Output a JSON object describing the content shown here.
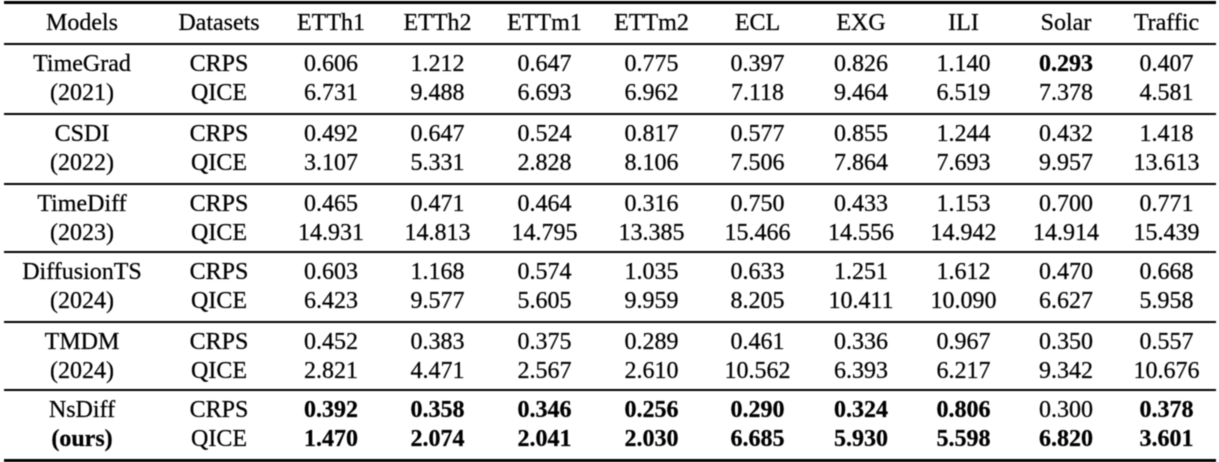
{
  "table": {
    "header": {
      "labels": [
        "Models",
        "Datasets",
        "ETTh1",
        "ETTh2",
        "ETTm1",
        "ETTm2",
        "ECL",
        "EXG",
        "ILI",
        "Solar",
        "Traffic"
      ]
    },
    "groups": [
      {
        "model": "TimeGrad",
        "year": "(2021)",
        "model_bold": false,
        "year_bold": false,
        "rows": [
          {
            "metric": "CRPS",
            "cells": [
              {
                "v": "0.606",
                "b": false
              },
              {
                "v": "1.212",
                "b": false
              },
              {
                "v": "0.647",
                "b": false
              },
              {
                "v": "0.775",
                "b": false
              },
              {
                "v": "0.397",
                "b": false
              },
              {
                "v": "0.826",
                "b": false
              },
              {
                "v": "1.140",
                "b": false
              },
              {
                "v": "0.293",
                "b": true
              },
              {
                "v": "0.407",
                "b": false
              }
            ]
          },
          {
            "metric": "QICE",
            "cells": [
              {
                "v": "6.731",
                "b": false
              },
              {
                "v": "9.488",
                "b": false
              },
              {
                "v": "6.693",
                "b": false
              },
              {
                "v": "6.962",
                "b": false
              },
              {
                "v": "7.118",
                "b": false
              },
              {
                "v": "9.464",
                "b": false
              },
              {
                "v": "6.519",
                "b": false
              },
              {
                "v": "7.378",
                "b": false
              },
              {
                "v": "4.581",
                "b": false
              }
            ]
          }
        ]
      },
      {
        "model": "CSDI",
        "year": "(2022)",
        "model_bold": false,
        "year_bold": false,
        "rows": [
          {
            "metric": "CRPS",
            "cells": [
              {
                "v": "0.492",
                "b": false
              },
              {
                "v": "0.647",
                "b": false
              },
              {
                "v": "0.524",
                "b": false
              },
              {
                "v": "0.817",
                "b": false
              },
              {
                "v": "0.577",
                "b": false
              },
              {
                "v": "0.855",
                "b": false
              },
              {
                "v": "1.244",
                "b": false
              },
              {
                "v": "0.432",
                "b": false
              },
              {
                "v": "1.418",
                "b": false
              }
            ]
          },
          {
            "metric": "QICE",
            "cells": [
              {
                "v": "3.107",
                "b": false
              },
              {
                "v": "5.331",
                "b": false
              },
              {
                "v": "2.828",
                "b": false
              },
              {
                "v": "8.106",
                "b": false
              },
              {
                "v": "7.506",
                "b": false
              },
              {
                "v": "7.864",
                "b": false
              },
              {
                "v": "7.693",
                "b": false
              },
              {
                "v": "9.957",
                "b": false
              },
              {
                "v": "13.613",
                "b": false
              }
            ]
          }
        ]
      },
      {
        "model": "TimeDiff",
        "year": "(2023)",
        "model_bold": false,
        "year_bold": false,
        "rows": [
          {
            "metric": "CRPS",
            "cells": [
              {
                "v": "0.465",
                "b": false
              },
              {
                "v": "0.471",
                "b": false
              },
              {
                "v": "0.464",
                "b": false
              },
              {
                "v": "0.316",
                "b": false
              },
              {
                "v": "0.750",
                "b": false
              },
              {
                "v": "0.433",
                "b": false
              },
              {
                "v": "1.153",
                "b": false
              },
              {
                "v": "0.700",
                "b": false
              },
              {
                "v": "0.771",
                "b": false
              }
            ]
          },
          {
            "metric": "QICE",
            "cells": [
              {
                "v": "14.931",
                "b": false
              },
              {
                "v": "14.813",
                "b": false
              },
              {
                "v": "14.795",
                "b": false
              },
              {
                "v": "13.385",
                "b": false
              },
              {
                "v": "15.466",
                "b": false
              },
              {
                "v": "14.556",
                "b": false
              },
              {
                "v": "14.942",
                "b": false
              },
              {
                "v": "14.914",
                "b": false
              },
              {
                "v": "15.439",
                "b": false
              }
            ]
          }
        ]
      },
      {
        "model": "DiffusionTS",
        "year": "(2024)",
        "model_bold": false,
        "year_bold": false,
        "rows": [
          {
            "metric": "CRPS",
            "cells": [
              {
                "v": "0.603",
                "b": false
              },
              {
                "v": "1.168",
                "b": false
              },
              {
                "v": "0.574",
                "b": false
              },
              {
                "v": "1.035",
                "b": false
              },
              {
                "v": "0.633",
                "b": false
              },
              {
                "v": "1.251",
                "b": false
              },
              {
                "v": "1.612",
                "b": false
              },
              {
                "v": "0.470",
                "b": false
              },
              {
                "v": "0.668",
                "b": false
              }
            ]
          },
          {
            "metric": "QICE",
            "cells": [
              {
                "v": "6.423",
                "b": false
              },
              {
                "v": "9.577",
                "b": false
              },
              {
                "v": "5.605",
                "b": false
              },
              {
                "v": "9.959",
                "b": false
              },
              {
                "v": "8.205",
                "b": false
              },
              {
                "v": "10.411",
                "b": false
              },
              {
                "v": "10.090",
                "b": false
              },
              {
                "v": "6.627",
                "b": false
              },
              {
                "v": "5.958",
                "b": false
              }
            ]
          }
        ]
      },
      {
        "model": "TMDM",
        "year": "(2024)",
        "model_bold": false,
        "year_bold": false,
        "rows": [
          {
            "metric": "CRPS",
            "cells": [
              {
                "v": "0.452",
                "b": false
              },
              {
                "v": "0.383",
                "b": false
              },
              {
                "v": "0.375",
                "b": false
              },
              {
                "v": "0.289",
                "b": false
              },
              {
                "v": "0.461",
                "b": false
              },
              {
                "v": "0.336",
                "b": false
              },
              {
                "v": "0.967",
                "b": false
              },
              {
                "v": "0.350",
                "b": false
              },
              {
                "v": "0.557",
                "b": false
              }
            ]
          },
          {
            "metric": "QICE",
            "cells": [
              {
                "v": "2.821",
                "b": false
              },
              {
                "v": "4.471",
                "b": false
              },
              {
                "v": "2.567",
                "b": false
              },
              {
                "v": "2.610",
                "b": false
              },
              {
                "v": "10.562",
                "b": false
              },
              {
                "v": "6.393",
                "b": false
              },
              {
                "v": "6.217",
                "b": false
              },
              {
                "v": "9.342",
                "b": false
              },
              {
                "v": "10.676",
                "b": false
              }
            ]
          }
        ]
      },
      {
        "model": "NsDiff",
        "year": "(ours)",
        "model_bold": false,
        "year_bold": true,
        "rows": [
          {
            "metric": "CRPS",
            "cells": [
              {
                "v": "0.392",
                "b": true
              },
              {
                "v": "0.358",
                "b": true
              },
              {
                "v": "0.346",
                "b": true
              },
              {
                "v": "0.256",
                "b": true
              },
              {
                "v": "0.290",
                "b": true
              },
              {
                "v": "0.324",
                "b": true
              },
              {
                "v": "0.806",
                "b": true
              },
              {
                "v": "0.300",
                "b": false
              },
              {
                "v": "0.378",
                "b": true
              }
            ]
          },
          {
            "metric": "QICE",
            "cells": [
              {
                "v": "1.470",
                "b": true
              },
              {
                "v": "2.074",
                "b": true
              },
              {
                "v": "2.041",
                "b": true
              },
              {
                "v": "2.030",
                "b": true
              },
              {
                "v": "6.685",
                "b": true
              },
              {
                "v": "5.930",
                "b": true
              },
              {
                "v": "5.598",
                "b": true
              },
              {
                "v": "6.820",
                "b": true
              },
              {
                "v": "3.601",
                "b": true
              }
            ]
          }
        ]
      }
    ]
  },
  "style": {
    "text_color": "#000000",
    "background_color": "#ffffff",
    "rule_color": "#000000"
  }
}
